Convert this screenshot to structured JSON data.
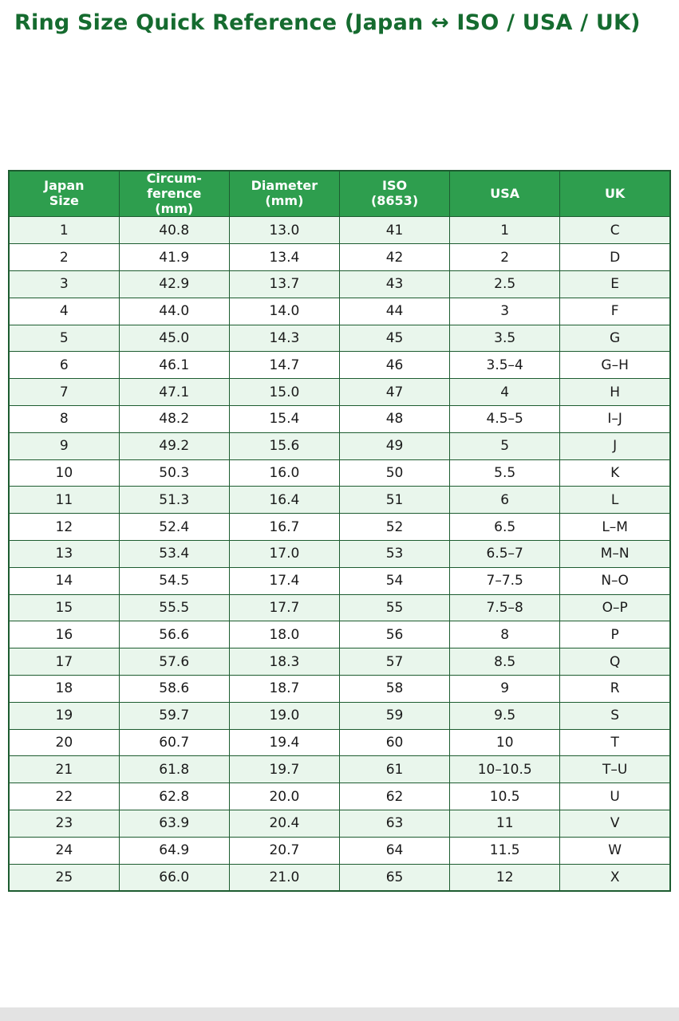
{
  "page": {
    "title": "Ring Size Quick Reference (Japan ↔ ISO / USA / UK)"
  },
  "colors": {
    "title_text": "#156b2f",
    "header_bg": "#2e9e4e",
    "header_text": "#ffffff",
    "row_alt_bg": "#e9f6ec",
    "border": "#1d5c30"
  },
  "chart_data": {
    "type": "table",
    "title": "Ring Size Quick Reference (Japan ↔ ISO / USA / UK)",
    "columns": [
      "Japan\nSize",
      "Circum-\nference\n(mm)",
      "Diameter\n(mm)",
      "ISO\n(8653)",
      "USA",
      "UK"
    ],
    "rows": [
      [
        "1",
        "40.8",
        "13.0",
        "41",
        "1",
        "C"
      ],
      [
        "2",
        "41.9",
        "13.4",
        "42",
        "2",
        "D"
      ],
      [
        "3",
        "42.9",
        "13.7",
        "43",
        "2.5",
        "E"
      ],
      [
        "4",
        "44.0",
        "14.0",
        "44",
        "3",
        "F"
      ],
      [
        "5",
        "45.0",
        "14.3",
        "45",
        "3.5",
        "G"
      ],
      [
        "6",
        "46.1",
        "14.7",
        "46",
        "3.5–4",
        "G–H"
      ],
      [
        "7",
        "47.1",
        "15.0",
        "47",
        "4",
        "H"
      ],
      [
        "8",
        "48.2",
        "15.4",
        "48",
        "4.5–5",
        "I–J"
      ],
      [
        "9",
        "49.2",
        "15.6",
        "49",
        "5",
        "J"
      ],
      [
        "10",
        "50.3",
        "16.0",
        "50",
        "5.5",
        "K"
      ],
      [
        "11",
        "51.3",
        "16.4",
        "51",
        "6",
        "L"
      ],
      [
        "12",
        "52.4",
        "16.7",
        "52",
        "6.5",
        "L–M"
      ],
      [
        "13",
        "53.4",
        "17.0",
        "53",
        "6.5–7",
        "M–N"
      ],
      [
        "14",
        "54.5",
        "17.4",
        "54",
        "7–7.5",
        "N–O"
      ],
      [
        "15",
        "55.5",
        "17.7",
        "55",
        "7.5–8",
        "O–P"
      ],
      [
        "16",
        "56.6",
        "18.0",
        "56",
        "8",
        "P"
      ],
      [
        "17",
        "57.6",
        "18.3",
        "57",
        "8.5",
        "Q"
      ],
      [
        "18",
        "58.6",
        "18.7",
        "58",
        "9",
        "R"
      ],
      [
        "19",
        "59.7",
        "19.0",
        "59",
        "9.5",
        "S"
      ],
      [
        "20",
        "60.7",
        "19.4",
        "60",
        "10",
        "T"
      ],
      [
        "21",
        "61.8",
        "19.7",
        "61",
        "10–10.5",
        "T–U"
      ],
      [
        "22",
        "62.8",
        "20.0",
        "62",
        "10.5",
        "U"
      ],
      [
        "23",
        "63.9",
        "20.4",
        "63",
        "11",
        "V"
      ],
      [
        "24",
        "64.9",
        "20.7",
        "64",
        "11.5",
        "W"
      ],
      [
        "25",
        "66.0",
        "21.0",
        "65",
        "12",
        "X"
      ]
    ]
  }
}
